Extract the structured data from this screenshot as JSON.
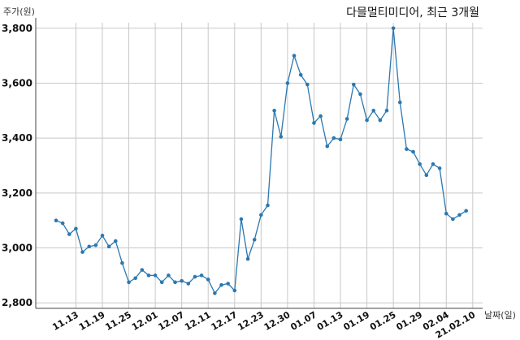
{
  "chart_data": {
    "type": "line",
    "title": "다믈멀티미디어, 최근 3개월",
    "ylabel": "주가(원)",
    "xlabel": "날짜(일)",
    "ylim": [
      2780,
      3820
    ],
    "yticks": [
      2800,
      3000,
      3200,
      3400,
      3600,
      3800
    ],
    "ytick_labels": [
      "2,800",
      "3,000",
      "3,200",
      "3,400",
      "3,600",
      "3,800"
    ],
    "grid": true,
    "xtick_labels": [
      "11.13",
      "11.19",
      "11.25",
      "12.01",
      "12.07",
      "12.11",
      "12.17",
      "12.23",
      "12.30",
      "01.07",
      "01.13",
      "01.19",
      "01.25",
      "01.29",
      "02.04",
      "21.02.10"
    ],
    "xtick_index": [
      3,
      7,
      11,
      15,
      19,
      23,
      27,
      31,
      35,
      39,
      43,
      47,
      51,
      55,
      59,
      63
    ],
    "series": [
      {
        "values": [
          3100,
          3090,
          3050,
          3070,
          2985,
          3005,
          3010,
          3045,
          3005,
          3025,
          2945,
          2875,
          2890,
          2920,
          2900,
          2900,
          2875,
          2900,
          2875,
          2880,
          2870,
          2895,
          2900,
          2885,
          2835,
          2865,
          2870,
          2845,
          3105,
          2960,
          3030,
          3120,
          3155,
          3500,
          3405,
          3600,
          3700,
          3630,
          3595,
          3455,
          3480,
          3370,
          3400,
          3395,
          3470,
          3595,
          3560,
          3465,
          3500,
          3465,
          3500,
          3800,
          3530,
          3360,
          3350,
          3305,
          3265,
          3305,
          3290,
          3125,
          3105,
          3120,
          3135
        ]
      }
    ]
  }
}
